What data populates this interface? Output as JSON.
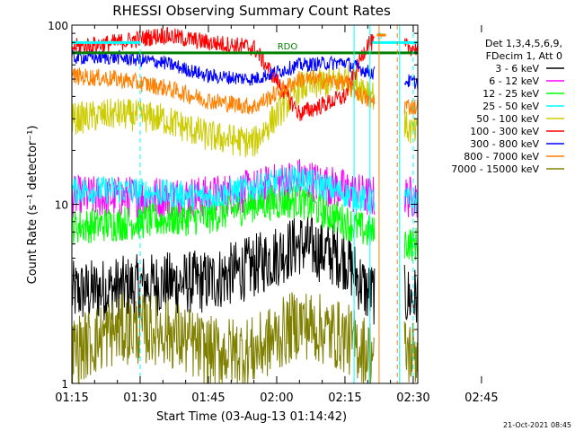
{
  "chart_data": {
    "type": "line",
    "title": "RHESSI Observing Summary Count Rates",
    "xlabel": "Start Time (03-Aug-13 01:14:42)",
    "ylabel": "Count Rate (s⁻¹ detector⁻¹)",
    "yscale": "log",
    "ylim": [
      1,
      100
    ],
    "y_tick_labels": [
      "1",
      "10",
      "100"
    ],
    "xlim_min": [
      75,
      151
    ],
    "x_ticks_min": [
      75,
      90,
      105,
      120,
      135,
      150,
      165
    ],
    "x_tick_labels": [
      "01:15",
      "01:30",
      "01:45",
      "02:00",
      "02:15",
      "02:30",
      "02:45"
    ],
    "legend_header": [
      "Det 1,3,4,5,6,9,",
      "FDecim 1, Att 0"
    ],
    "series": [
      {
        "name": "3 - 6 keV",
        "color": "#000000",
        "x": [
          75,
          85,
          95,
          105,
          115,
          125,
          135,
          140,
          150
        ],
        "values": [
          3.2,
          3.4,
          3.6,
          3.7,
          4.5,
          6.0,
          5.0,
          3.2,
          3.0
        ]
      },
      {
        "name": "6 - 12 keV",
        "color": "#ff00ff",
        "x": [
          75,
          85,
          95,
          105,
          115,
          125,
          135,
          140,
          150
        ],
        "values": [
          11,
          11,
          11,
          11,
          12,
          14,
          12,
          11,
          11
        ]
      },
      {
        "name": "12 - 25 keV",
        "color": "#00ff00",
        "x": [
          75,
          85,
          95,
          105,
          115,
          125,
          135,
          140,
          150
        ],
        "values": [
          7.5,
          7.8,
          8.2,
          8.5,
          10,
          10.5,
          8,
          7,
          6
        ]
      },
      {
        "name": "25 - 50 keV",
        "color": "#00ffff",
        "x": [
          75,
          85,
          95,
          105,
          115,
          125,
          135,
          140,
          150
        ],
        "values": [
          12,
          12,
          11.5,
          11,
          12.5,
          14,
          11.5,
          10.5,
          10.5
        ]
      },
      {
        "name": "50 - 100 keV",
        "color": "#cccc00",
        "x": [
          75,
          85,
          95,
          105,
          115,
          125,
          135,
          140,
          150
        ],
        "values": [
          30,
          32,
          30,
          24,
          22,
          45,
          50,
          44,
          25
        ]
      },
      {
        "name": "100 - 300 keV",
        "color": "#ff0000",
        "x": [
          75,
          85,
          95,
          105,
          115,
          125,
          135,
          140,
          150
        ],
        "values": [
          75,
          80,
          88,
          80,
          75,
          32,
          40,
          80,
          75
        ]
      },
      {
        "name": "300 - 800 keV",
        "color": "#0000ff",
        "x": [
          75,
          85,
          95,
          105,
          115,
          125,
          135,
          140,
          150
        ],
        "values": [
          66,
          66,
          62,
          52,
          50,
          60,
          62,
          55,
          48
        ]
      },
      {
        "name": "800 - 7000 keV",
        "color": "#ff8000",
        "x": [
          75,
          85,
          95,
          105,
          115,
          125,
          135,
          140,
          150
        ],
        "values": [
          52,
          50,
          45,
          38,
          35,
          50,
          48,
          38,
          35
        ]
      },
      {
        "name": "7000 - 15000 keV",
        "color": "#808000",
        "x": [
          75,
          85,
          95,
          105,
          115,
          125,
          135,
          140,
          150
        ],
        "values": [
          1.5,
          2.0,
          2.0,
          1.5,
          1.5,
          2.2,
          1.8,
          1.5,
          1.5
        ]
      }
    ],
    "flag_bars": [
      {
        "label": "RDO",
        "color": "#008000",
        "x_start": 75,
        "x_end": 151,
        "y": 70
      },
      {
        "label": "",
        "color": "#00ffff",
        "x_start": 75,
        "x_end": 90,
        "y": 80
      },
      {
        "label": "S",
        "color": "#00ffff",
        "x_start": 141,
        "x_end": 151,
        "y": 80
      },
      {
        "label": "",
        "color": "#ff8000",
        "x_start": 142,
        "x_end": 144,
        "y": 88
      }
    ],
    "vertical_markers_min": [
      {
        "x": 75,
        "color": "#00ffff",
        "style": "solid"
      },
      {
        "x": 90,
        "color": "#00ffff",
        "style": "dashed"
      },
      {
        "x": 137,
        "color": "#00ffff",
        "style": "solid"
      },
      {
        "x": 140.5,
        "color": "#00ffff",
        "style": "solid"
      },
      {
        "x": 142.5,
        "color": "#ff8000",
        "style": "solid"
      },
      {
        "x": 146.5,
        "color": "#ff8000",
        "style": "dashed"
      },
      {
        "x": 147,
        "color": "#00ffff",
        "style": "solid"
      },
      {
        "x": 150,
        "color": "#00ffff",
        "style": "dashed"
      }
    ]
  },
  "footer": {
    "timestamp": "21-Oct-2021 08:45"
  }
}
